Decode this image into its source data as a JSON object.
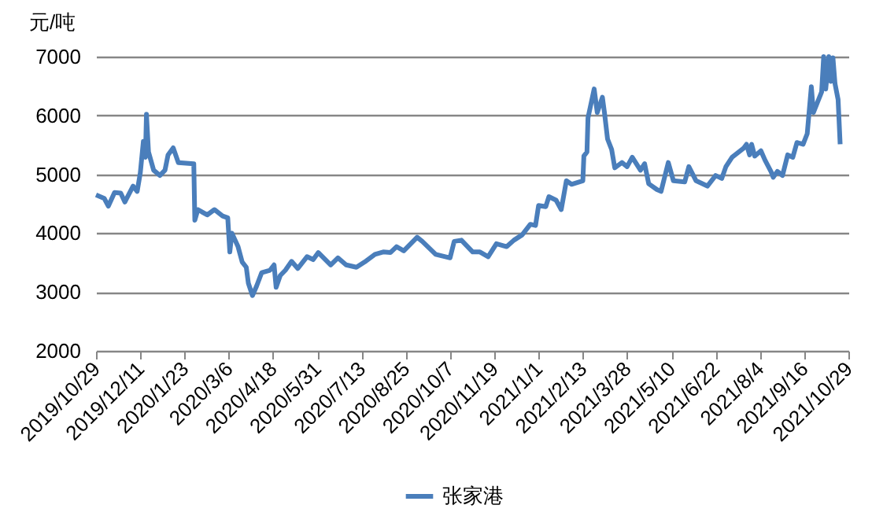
{
  "chart_data": {
    "type": "line",
    "ylabel": "元/吨",
    "legend": "bottom",
    "grid": "y",
    "xlim": [
      "2019-10-29",
      "2021-10-29"
    ],
    "xticks": [
      {
        "value": "2019-10-29",
        "label": "2019/10/29"
      },
      {
        "value": "2019-12-11",
        "label": "2019/12/11"
      },
      {
        "value": "2020-01-23",
        "label": "2020/1/23"
      },
      {
        "value": "2020-03-06",
        "label": "2020/3/6"
      },
      {
        "value": "2020-04-18",
        "label": "2020/4/18"
      },
      {
        "value": "2020-05-31",
        "label": "2020/5/31"
      },
      {
        "value": "2020-07-13",
        "label": "2020/7/13"
      },
      {
        "value": "2020-08-25",
        "label": "2020/8/25"
      },
      {
        "value": "2020-10-07",
        "label": "2020/10/7"
      },
      {
        "value": "2020-11-19",
        "label": "2020/11/19"
      },
      {
        "value": "2021-01-01",
        "label": "2021/1/1"
      },
      {
        "value": "2021-02-13",
        "label": "2021/2/13"
      },
      {
        "value": "2021-03-28",
        "label": "2021/3/28"
      },
      {
        "value": "2021-05-10",
        "label": "2021/5/10"
      },
      {
        "value": "2021-06-22",
        "label": "2021/6/22"
      },
      {
        "value": "2021-08-04",
        "label": "2021/8/4"
      },
      {
        "value": "2021-09-16",
        "label": "2021/9/16"
      },
      {
        "value": "2021-10-29",
        "label": "2021/10/29"
      }
    ],
    "ylim": [
      2000,
      7000
    ],
    "yticks": [
      2000,
      3000,
      4000,
      5000,
      6000,
      7000
    ],
    "x": [
      "2019-10-29",
      "2019-11-06",
      "2019-11-10",
      "2019-11-16",
      "2019-11-22",
      "2019-11-26",
      "2019-12-04",
      "2019-12-08",
      "2019-12-11",
      "2019-12-14",
      "2019-12-16",
      "2019-12-17",
      "2019-12-19",
      "2019-12-24",
      "2019-12-30",
      "2020-01-04",
      "2020-01-07",
      "2020-01-12",
      "2020-01-17",
      "2020-02-01",
      "2020-02-02",
      "2020-02-05",
      "2020-02-14",
      "2020-02-21",
      "2020-02-29",
      "2020-03-05",
      "2020-03-07",
      "2020-03-09",
      "2020-03-15",
      "2020-03-19",
      "2020-03-23",
      "2020-03-25",
      "2020-03-29",
      "2020-04-02",
      "2020-04-07",
      "2020-04-15",
      "2020-04-19",
      "2020-04-21",
      "2020-04-25",
      "2020-04-30",
      "2020-05-06",
      "2020-05-12",
      "2020-05-21",
      "2020-05-27",
      "2020-06-01",
      "2020-06-13",
      "2020-06-20",
      "2020-06-28",
      "2020-07-08",
      "2020-07-16",
      "2020-07-26",
      "2020-08-03",
      "2020-08-10",
      "2020-08-16",
      "2020-08-23",
      "2020-09-05",
      "2020-09-10",
      "2020-09-23",
      "2020-10-07",
      "2020-10-11",
      "2020-10-18",
      "2020-10-29",
      "2020-11-05",
      "2020-11-13",
      "2020-11-21",
      "2020-12-01",
      "2020-12-08",
      "2020-12-16",
      "2020-12-24",
      "2020-12-29",
      "2021-01-01",
      "2021-01-08",
      "2021-01-11",
      "2021-01-18",
      "2021-01-23",
      "2021-01-28",
      "2021-02-02",
      "2021-02-13",
      "2021-02-14",
      "2021-02-17",
      "2021-02-18",
      "2021-02-24",
      "2021-02-27",
      "2021-03-04",
      "2021-03-06",
      "2021-03-09",
      "2021-03-13",
      "2021-03-16",
      "2021-03-23",
      "2021-03-28",
      "2021-04-02",
      "2021-04-10",
      "2021-04-14",
      "2021-04-18",
      "2021-04-26",
      "2021-04-30",
      "2021-05-07",
      "2021-05-12",
      "2021-05-23",
      "2021-05-27",
      "2021-06-03",
      "2021-06-14",
      "2021-06-22",
      "2021-06-28",
      "2021-07-02",
      "2021-07-08",
      "2021-07-19",
      "2021-07-22",
      "2021-07-25",
      "2021-07-27",
      "2021-07-30",
      "2021-08-05",
      "2021-08-09",
      "2021-08-15",
      "2021-08-17",
      "2021-08-21",
      "2021-08-26",
      "2021-08-31",
      "2021-09-05",
      "2021-09-09",
      "2021-09-15",
      "2021-09-19",
      "2021-09-23",
      "2021-09-25",
      "2021-10-03",
      "2021-10-05",
      "2021-10-07",
      "2021-10-10",
      "2021-10-12",
      "2021-10-14",
      "2021-10-16",
      "2021-10-19",
      "2021-10-21"
    ],
    "series": [
      {
        "name": "张家港",
        "color": "#4a7ebb",
        "values": [
          4650,
          4590,
          4460,
          4690,
          4680,
          4530,
          4800,
          4710,
          5020,
          5560,
          5290,
          6020,
          5380,
          5070,
          4980,
          5070,
          5330,
          5450,
          5200,
          5180,
          4220,
          4400,
          4310,
          4400,
          4290,
          4260,
          3680,
          4000,
          3770,
          3510,
          3420,
          3150,
          2940,
          3100,
          3330,
          3370,
          3460,
          3080,
          3280,
          3370,
          3520,
          3400,
          3600,
          3550,
          3670,
          3460,
          3580,
          3460,
          3420,
          3510,
          3640,
          3680,
          3670,
          3770,
          3700,
          3930,
          3860,
          3640,
          3580,
          3860,
          3880,
          3680,
          3680,
          3600,
          3820,
          3770,
          3880,
          3970,
          4150,
          4130,
          4470,
          4450,
          4620,
          4560,
          4400,
          4890,
          4830,
          4890,
          5310,
          5380,
          5960,
          6450,
          6050,
          6310,
          6050,
          5600,
          5420,
          5110,
          5200,
          5130,
          5290,
          5070,
          5180,
          4840,
          4740,
          4710,
          5200,
          4890,
          4870,
          5130,
          4890,
          4800,
          4980,
          4930,
          5130,
          5290,
          5440,
          5510,
          5330,
          5510,
          5310,
          5400,
          5240,
          5040,
          4950,
          5050,
          4980,
          5330,
          5290,
          5540,
          5510,
          5690,
          6490,
          6050,
          6400,
          7000,
          6450,
          7000,
          6580,
          6980,
          6540,
          6270,
          5510
        ]
      }
    ]
  }
}
